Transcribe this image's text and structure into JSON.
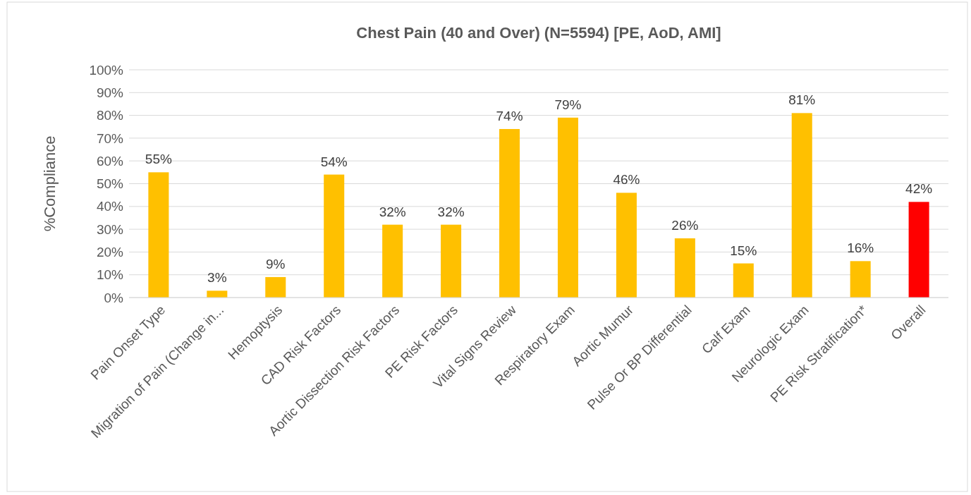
{
  "chart_data": {
    "type": "bar",
    "title": "Chest Pain (40 and Over) (N=5594) [PE, AoD, AMI]",
    "ylabel": "%Compliance",
    "categories": [
      "Pain Onset Type",
      "Migration of Pain (Change in...",
      "Hemoptysis",
      "CAD Risk Factors",
      "Aortic Dissection Risk Factors",
      "PE Risk Factors",
      "Vital Signs Review",
      "Respiratory Exam",
      "Aortic Mumur",
      "Pulse Or BP Differential",
      "Calf Exam",
      "Neurologic Exam",
      "PE Risk Stratification*",
      "Overall"
    ],
    "values": [
      55,
      3,
      9,
      54,
      32,
      32,
      74,
      79,
      46,
      26,
      15,
      81,
      16,
      42
    ],
    "value_labels": [
      "55%",
      "3%",
      "9%",
      "54%",
      "32%",
      "32%",
      "74%",
      "79%",
      "46%",
      "26%",
      "15%",
      "81%",
      "16%",
      "42%"
    ],
    "colors": [
      "#ffc000",
      "#ffc000",
      "#ffc000",
      "#ffc000",
      "#ffc000",
      "#ffc000",
      "#ffc000",
      "#ffc000",
      "#ffc000",
      "#ffc000",
      "#ffc000",
      "#ffc000",
      "#ffc000",
      "#ff0000"
    ],
    "ylim": [
      0,
      100
    ],
    "yticks": [
      {
        "value": 0,
        "label": "0%"
      },
      {
        "value": 10,
        "label": "10%"
      },
      {
        "value": 20,
        "label": "20%"
      },
      {
        "value": 30,
        "label": "30%"
      },
      {
        "value": 40,
        "label": "40%"
      },
      {
        "value": 50,
        "label": "50%"
      },
      {
        "value": 60,
        "label": "60%"
      },
      {
        "value": 70,
        "label": "70%"
      },
      {
        "value": 80,
        "label": "80%"
      },
      {
        "value": 90,
        "label": "90%"
      },
      {
        "value": 100,
        "label": "100%"
      }
    ],
    "grid": "y"
  }
}
